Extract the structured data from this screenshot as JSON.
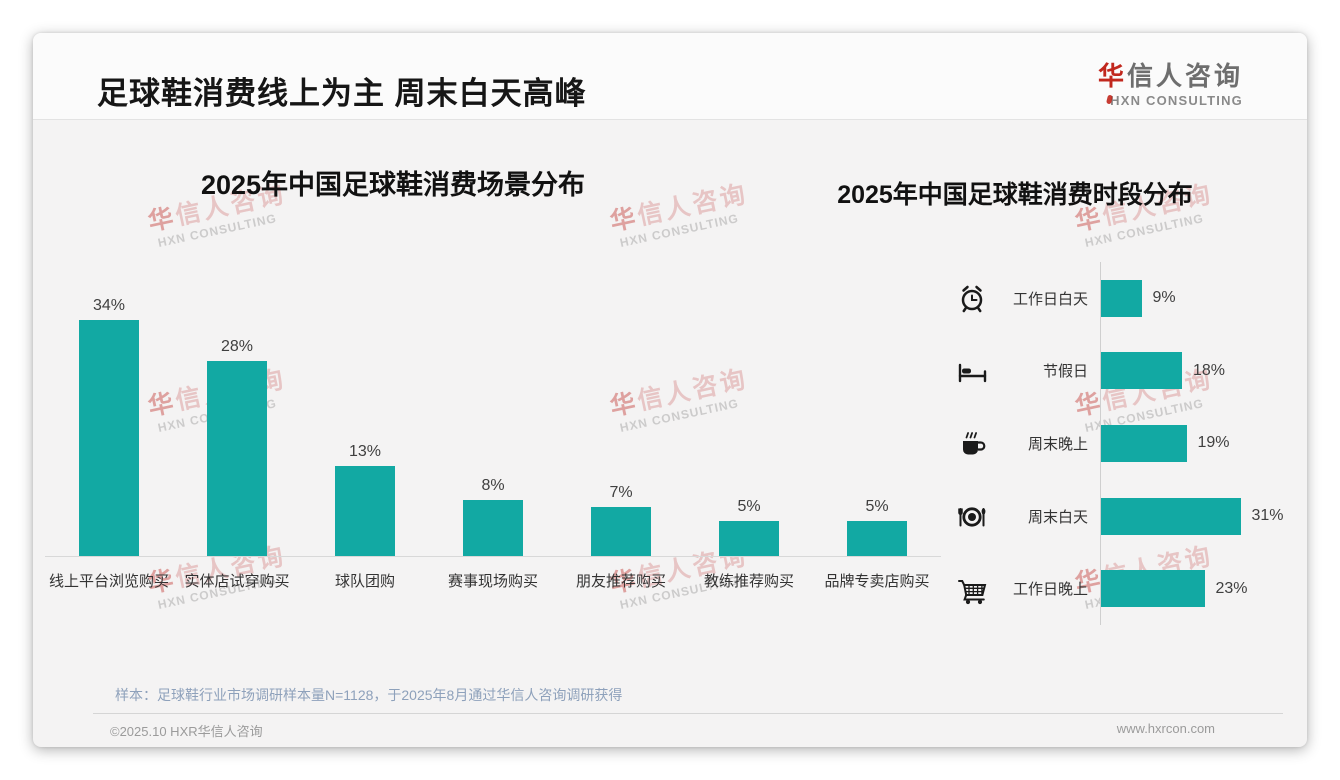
{
  "header": {
    "title": "足球鞋消费线上为主 周末白天高峰",
    "logo": {
      "cn": "华信人咨询",
      "en": "HXN CONSULTING"
    }
  },
  "chart_data": [
    {
      "type": "bar",
      "orientation": "vertical",
      "title": "2025年中国足球鞋消费场景分布",
      "categories": [
        "线上平台浏览购买",
        "实体店试穿购买",
        "球队团购",
        "赛事现场购买",
        "朋友推荐购买",
        "教练推荐购买",
        "品牌专卖店购买"
      ],
      "values": [
        34,
        28,
        13,
        8,
        7,
        5,
        5
      ],
      "labels": [
        "34%",
        "28%",
        "13%",
        "8%",
        "7%",
        "5%",
        "5%"
      ],
      "ylim": [
        0,
        36
      ],
      "grid": false,
      "bar_color": "#12A9A3",
      "axis_color": "#d8d8d8"
    },
    {
      "type": "bar",
      "orientation": "horizontal",
      "title": "2025年中国足球鞋消费时段分布",
      "categories": [
        "工作日白天",
        "节假日",
        "周末晚上",
        "周末白天",
        "工作日晚上"
      ],
      "values": [
        9,
        18,
        19,
        31,
        23
      ],
      "labels": [
        "9%",
        "18%",
        "19%",
        "31%",
        "23%"
      ],
      "icons": [
        "alarm-clock",
        "bed",
        "coffee",
        "dining",
        "shopping-cart"
      ],
      "xlim": [
        0,
        34
      ],
      "grid": false,
      "bar_color": "#12A9A3",
      "axis_color": "#cfcfcf"
    }
  ],
  "footnote": "样本：足球鞋行业市场调研样本量N=1128，于2025年8月通过华信人咨询调研获得",
  "footer": {
    "copyright": "©2025.10 HXR华信人咨询",
    "website": "www.hxrcon.com"
  },
  "watermark": {
    "cn": "华信人咨询",
    "en": "HXN CONSULTING"
  }
}
